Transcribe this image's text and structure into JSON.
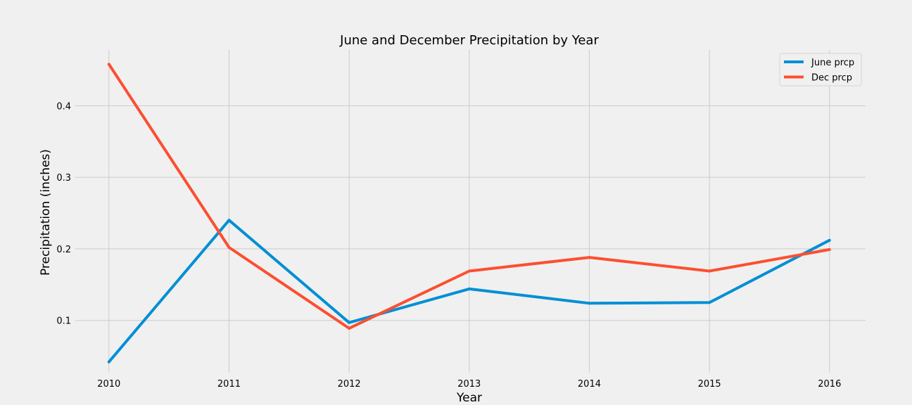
{
  "chart_data": {
    "type": "line",
    "title": "June and December Precipitation by Year",
    "xlabel": "Year",
    "ylabel": "Precipitation (inches)",
    "x": [
      2010,
      2011,
      2012,
      2013,
      2014,
      2015,
      2016
    ],
    "x_ticks": [
      "2010",
      "2011",
      "2012",
      "2013",
      "2014",
      "2015",
      "2016"
    ],
    "y_ticks": [
      "0.1",
      "0.2",
      "0.3",
      "0.4"
    ],
    "ylim": [
      0.027,
      0.478
    ],
    "xlim": [
      2009.72,
      2016.3
    ],
    "grid": true,
    "legend_position": "top-right",
    "series": [
      {
        "name": "June prcp",
        "color": "#008fd5",
        "values": [
          0.042,
          0.24,
          0.097,
          0.144,
          0.124,
          0.125,
          0.212
        ]
      },
      {
        "name": "Dec prcp",
        "color": "#fc4f30",
        "values": [
          0.458,
          0.202,
          0.089,
          0.169,
          0.188,
          0.169,
          0.199
        ]
      }
    ]
  }
}
